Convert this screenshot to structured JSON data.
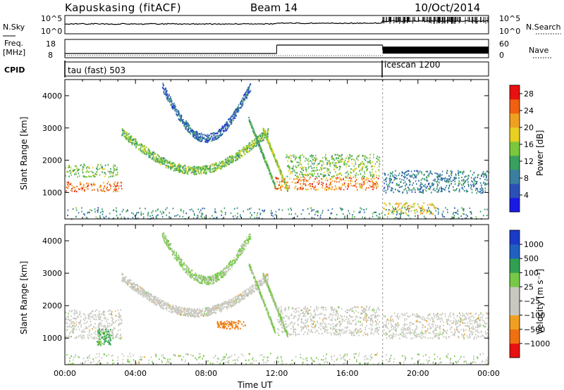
{
  "header": {
    "station": "Kapuskasing (fitACF)",
    "beam": "Beam 14",
    "date": "10/Oct/2014"
  },
  "summary_panels": {
    "nsky": {
      "left_label": "N.Sky",
      "right_label": "N.Search",
      "left_ticks": [
        "10^5",
        "10^0"
      ],
      "right_ticks": [
        "10^5",
        "10^0"
      ]
    },
    "freq": {
      "left_label_line1": "Freq.",
      "left_label_line2": "[MHz]",
      "left_ticks": [
        "18",
        "8"
      ],
      "right_label": "Nave",
      "right_ticks": [
        "60",
        "0"
      ],
      "freq_segments": [
        {
          "start": 0,
          "end": 12,
          "value": 10.5
        },
        {
          "start": 12,
          "end": 18,
          "value": 15.5
        },
        {
          "start": 18,
          "end": 24,
          "value": 12.5
        }
      ]
    },
    "cpid": {
      "label": "CPID",
      "programs": [
        {
          "name": "tau (fast) 503",
          "start": 0
        },
        {
          "name": "icescan 1200",
          "start": 18
        }
      ]
    }
  },
  "chart_data": [
    {
      "type": "heatmap",
      "title": "",
      "quantity": "Power",
      "xlabel": "",
      "ylabel": "Slant Range [km]",
      "x_ticks": [
        "00:00",
        "04:00",
        "08:00",
        "12:00",
        "16:00",
        "20:00",
        "00:00"
      ],
      "y_ticks": [
        1000,
        2000,
        3000,
        4000
      ],
      "xlim": [
        0,
        24
      ],
      "ylim": [
        180,
        4500
      ],
      "colorbar": {
        "label": "Power [dB]",
        "ticks": [
          "4",
          "8",
          "12",
          "16",
          "20",
          "24",
          "28"
        ],
        "range": [
          0,
          30
        ],
        "colors": [
          "#1a1ae6",
          "#2b50b8",
          "#3a7fa0",
          "#3aa060",
          "#7cc83c",
          "#e8d020",
          "#f0a020",
          "#f06010",
          "#e81010"
        ]
      },
      "features": [
        {
          "kind": "band",
          "t0": 0,
          "t1": 3.2,
          "r0": 1050,
          "r1": 1350,
          "value": 26
        },
        {
          "kind": "band",
          "t0": 0,
          "t1": 3.0,
          "r0": 1500,
          "r1": 1900,
          "value": 14
        },
        {
          "kind": "band",
          "t0": 11.8,
          "t1": 17.8,
          "r0": 1100,
          "r1": 1500,
          "value": 24
        },
        {
          "kind": "band",
          "t0": 12.5,
          "t1": 17.8,
          "r0": 1500,
          "r1": 2200,
          "value": 14
        },
        {
          "kind": "band",
          "t0": 18,
          "t1": 24,
          "r0": 1000,
          "r1": 1700,
          "value": 8
        },
        {
          "kind": "band",
          "t0": 18,
          "t1": 21,
          "r0": 350,
          "r1": 700,
          "value": 20
        },
        {
          "kind": "arc",
          "t0": 3.2,
          "t1": 11.5,
          "rmin": 1700,
          "rmax": 2900,
          "value": 14
        },
        {
          "kind": "arc",
          "t0": 5.5,
          "t1": 10.5,
          "rmin": 2700,
          "rmax": 4300,
          "value": 6
        }
      ]
    },
    {
      "type": "heatmap",
      "title": "",
      "quantity": "Velocity",
      "xlabel": "Time UT",
      "ylabel": "Slant Range [km]",
      "x_ticks": [
        "00:00",
        "04:00",
        "08:00",
        "12:00",
        "16:00",
        "20:00",
        "00:00"
      ],
      "y_ticks": [
        1000,
        2000,
        3000,
        4000
      ],
      "xlim": [
        0,
        24
      ],
      "ylim": [
        180,
        4500
      ],
      "colorbar": {
        "label": "Velocity [m s⁻¹]",
        "ticks": [
          "1000",
          "500",
          "100",
          "25",
          "−25",
          "−100",
          "−500",
          "−1000"
        ],
        "colors": [
          "#1a3ac8",
          "#2060c0",
          "#30a050",
          "#78c848",
          "#c8c8c0",
          "#c8c8c0",
          "#f0a020",
          "#f07010",
          "#e81010"
        ]
      },
      "features": [
        {
          "kind": "band",
          "t0": 0,
          "t1": 3.2,
          "r0": 1000,
          "r1": 1900,
          "value": 0
        },
        {
          "kind": "band",
          "t0": 12,
          "t1": 17.8,
          "r0": 1100,
          "r1": 2000,
          "value": 0
        },
        {
          "kind": "band",
          "t0": 18,
          "t1": 24,
          "r0": 1000,
          "r1": 1800,
          "value": 0
        },
        {
          "kind": "patch",
          "t0": 8.6,
          "t1": 10.2,
          "r0": 1300,
          "r1": 1550,
          "value": -200
        },
        {
          "kind": "patch",
          "t0": 1.8,
          "t1": 2.6,
          "r0": 800,
          "r1": 1300,
          "value": 200
        },
        {
          "kind": "arc",
          "t0": 3.2,
          "t1": 11.5,
          "rmin": 1800,
          "rmax": 2900,
          "value": 0
        },
        {
          "kind": "arc",
          "t0": 5.5,
          "t1": 10.5,
          "rmin": 2800,
          "rmax": 4200,
          "value": 80
        }
      ]
    }
  ]
}
